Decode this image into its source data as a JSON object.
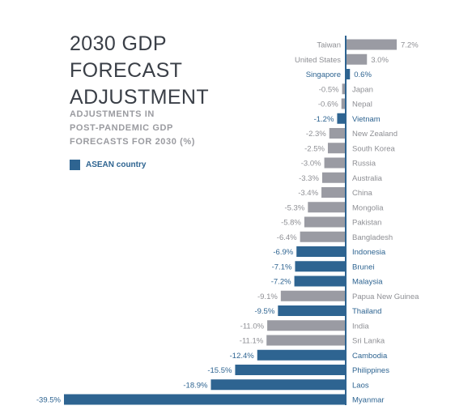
{
  "colors": {
    "asean": "#2e6491",
    "other": "#9a9ba3",
    "axis": "#2e6491",
    "title": "#3a3f47",
    "subtitle": "#9a9ba0",
    "grey_text": "#8e8f94"
  },
  "title_lines": [
    "2030 GDP",
    "FORECAST",
    "ADJUSTMENT"
  ],
  "subtitle_lines": [
    "ADJUSTMENTS IN",
    "POST-PANDEMIC GDP",
    "FORECASTS FOR 2030 (%)"
  ],
  "legend": {
    "label": "ASEAN country"
  },
  "chart_data": {
    "type": "bar",
    "orientation": "horizontal",
    "unit": "%",
    "categories": [
      "Taiwan",
      "United States",
      "Singapore",
      "Japan",
      "Nepal",
      "Vietnam",
      "New Zealand",
      "South Korea",
      "Russia",
      "Australia",
      "China",
      "Mongolia",
      "Pakistan",
      "Bangladesh",
      "Indonesia",
      "Brunei",
      "Malaysia",
      "Papua New Guinea",
      "Thailand",
      "India",
      "Sri Lanka",
      "Cambodia",
      "Philippines",
      "Laos",
      "Myanmar"
    ],
    "values": [
      7.2,
      3.0,
      0.6,
      -0.5,
      -0.6,
      -1.2,
      -2.3,
      -2.5,
      -3.0,
      -3.3,
      -3.4,
      -5.3,
      -5.8,
      -6.4,
      -6.9,
      -7.1,
      -7.2,
      -9.1,
      -9.5,
      -11.0,
      -11.1,
      -12.4,
      -15.5,
      -18.9,
      -39.5
    ],
    "value_labels": [
      "7.2%",
      "3.0%",
      "0.6%",
      "-0.5%",
      "-0.6%",
      "-1.2%",
      "-2.3%",
      "-2.5%",
      "-3.0%",
      "-3.3%",
      "-3.4%",
      "-5.3%",
      "-5.8%",
      "-6.4%",
      "-6.9%",
      "-7.1%",
      "-7.2%",
      "-9.1%",
      "-9.5%",
      "-11.0%",
      "-11.1%",
      "-12.4%",
      "-15.5%",
      "-18.9%",
      "-39.5%"
    ],
    "asean": [
      false,
      false,
      true,
      false,
      false,
      true,
      false,
      false,
      false,
      false,
      false,
      false,
      false,
      false,
      true,
      true,
      true,
      false,
      true,
      false,
      false,
      true,
      true,
      true,
      true
    ],
    "xlim": [
      -39.5,
      7.2
    ],
    "grid": false,
    "legend_position": "left"
  }
}
